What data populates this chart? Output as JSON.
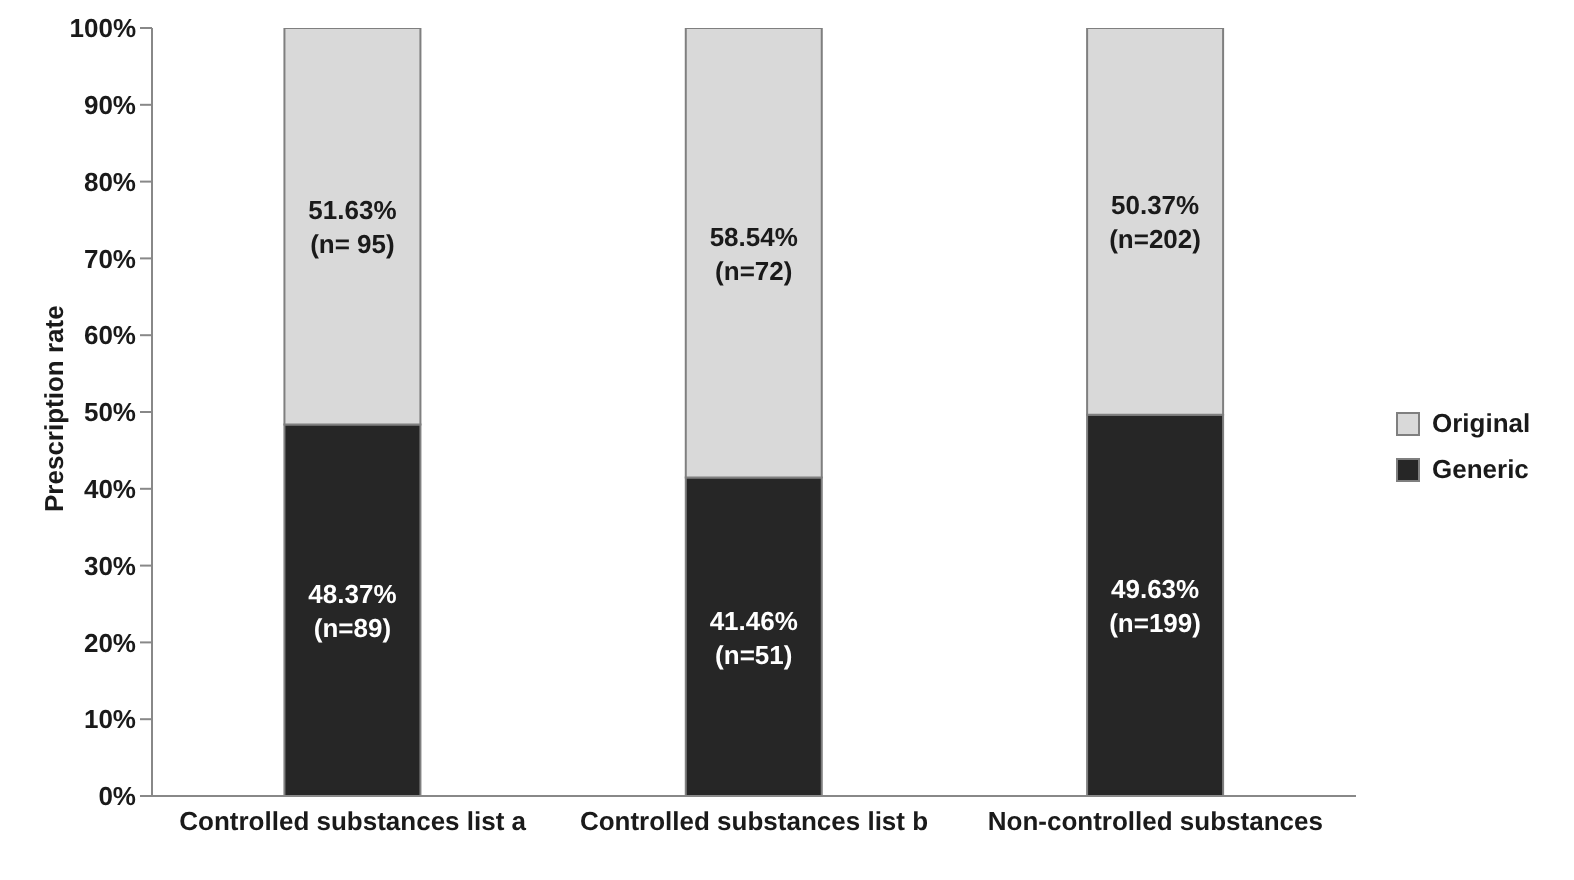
{
  "chart_data": {
    "type": "bar",
    "stacked": true,
    "ylabel": "Prescription rate",
    "categories": [
      "Controlled substances list a",
      "Controlled substances list b",
      "Non-controlled substances"
    ],
    "series": [
      {
        "name": "Generic",
        "color": "#262626",
        "values": [
          48.37,
          41.46,
          49.63
        ],
        "value_labels": [
          "48.37%\n(n=89)",
          "41.46%\n(n=51)",
          "49.63%\n(n=199)"
        ]
      },
      {
        "name": "Original",
        "color": "#d9d9d9",
        "values": [
          51.63,
          58.54,
          50.37
        ],
        "value_labels": [
          "51.63%\n(n= 95)",
          "58.54%\n(n=72)",
          "50.37%\n(n=202)"
        ]
      }
    ],
    "ylim": [
      0,
      100
    ],
    "yticks": [
      {
        "value": 0,
        "label": "0%"
      },
      {
        "value": 10,
        "label": "10%"
      },
      {
        "value": 20,
        "label": "20%"
      },
      {
        "value": 30,
        "label": "30%"
      },
      {
        "value": 40,
        "label": "40%"
      },
      {
        "value": 50,
        "label": "50%"
      },
      {
        "value": 60,
        "label": "60%"
      },
      {
        "value": 70,
        "label": "70%"
      },
      {
        "value": 80,
        "label": "80%"
      },
      {
        "value": 90,
        "label": "90%"
      },
      {
        "value": 100,
        "label": "100%"
      }
    ],
    "legend": "right",
    "grid": false
  }
}
